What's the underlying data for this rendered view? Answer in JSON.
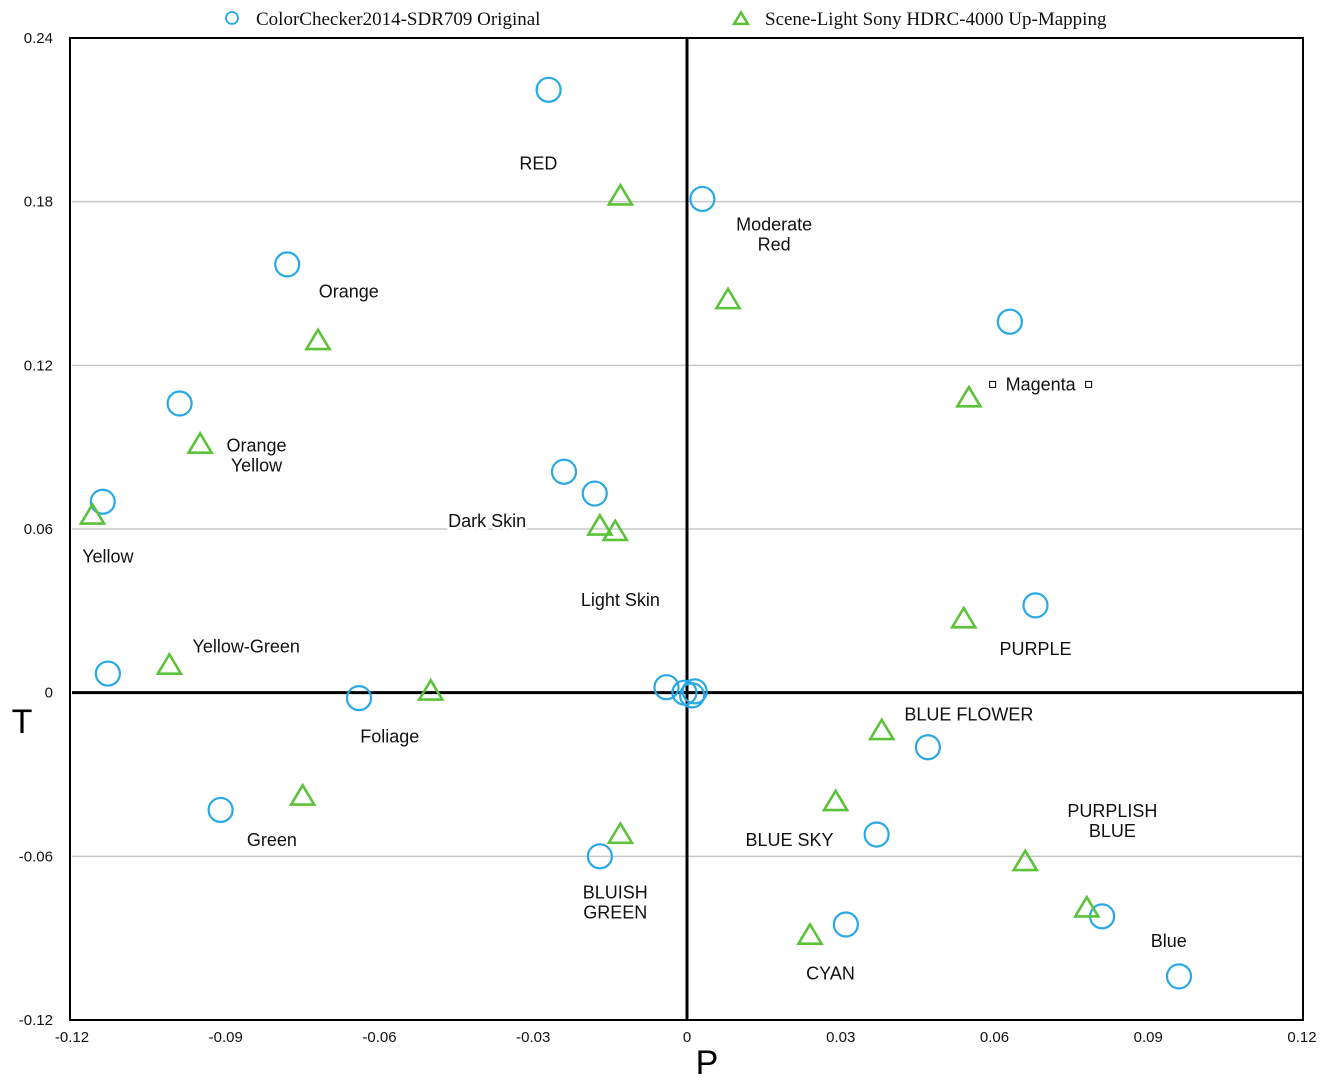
{
  "chart_data": {
    "type": "scatter",
    "title": "",
    "xlabel": "P",
    "ylabel": "T",
    "xlim": [
      -0.12,
      0.12
    ],
    "ylim": [
      -0.12,
      0.24
    ],
    "x_ticks": [
      "-0.12",
      "-0.09",
      "-0.06",
      "-0.03",
      "0",
      "0.03",
      "0.06",
      "0.09",
      "0.12"
    ],
    "y_ticks": [
      "0.24",
      "0.18",
      "0.12",
      "0.06",
      "0",
      "-0.06",
      "-0.12"
    ],
    "grid": "horizontal",
    "legend_position": "top",
    "series": [
      {
        "name": "ColorChecker2014-SDR709 Original",
        "marker": "circle",
        "color": "#29a8e8",
        "points": [
          {
            "x": -0.027,
            "y": 0.221
          },
          {
            "x": 0.003,
            "y": 0.181
          },
          {
            "x": -0.078,
            "y": 0.157
          },
          {
            "x": 0.063,
            "y": 0.136
          },
          {
            "x": -0.099,
            "y": 0.106
          },
          {
            "x": -0.024,
            "y": 0.081
          },
          {
            "x": -0.018,
            "y": 0.073
          },
          {
            "x": -0.114,
            "y": 0.07
          },
          {
            "x": 0.068,
            "y": 0.032
          },
          {
            "x": -0.113,
            "y": 0.007
          },
          {
            "x": -0.064,
            "y": -0.002
          },
          {
            "x": -0.004,
            "y": 0.002
          },
          {
            "x": -0.0005,
            "y": 0.0
          },
          {
            "x": 0.001,
            "y": -0.001
          },
          {
            "x": 0.0015,
            "y": 0.0005
          },
          {
            "x": 0.047,
            "y": -0.02
          },
          {
            "x": -0.091,
            "y": -0.043
          },
          {
            "x": 0.037,
            "y": -0.052
          },
          {
            "x": -0.017,
            "y": -0.06
          },
          {
            "x": 0.031,
            "y": -0.085
          },
          {
            "x": 0.081,
            "y": -0.082
          },
          {
            "x": 0.096,
            "y": -0.104
          }
        ]
      },
      {
        "name": "Scene-Light Sony HDRC-4000 Up-Mapping",
        "marker": "triangle",
        "color": "#5cc23a",
        "points": [
          {
            "x": -0.013,
            "y": 0.182
          },
          {
            "x": 0.008,
            "y": 0.144
          },
          {
            "x": -0.072,
            "y": 0.129
          },
          {
            "x": 0.055,
            "y": 0.108
          },
          {
            "x": -0.095,
            "y": 0.091
          },
          {
            "x": -0.017,
            "y": 0.061
          },
          {
            "x": -0.014,
            "y": 0.059
          },
          {
            "x": -0.116,
            "y": 0.065
          },
          {
            "x": 0.054,
            "y": 0.027
          },
          {
            "x": -0.101,
            "y": 0.01
          },
          {
            "x": -0.05,
            "y": 0.0005
          },
          {
            "x": 0.038,
            "y": -0.014
          },
          {
            "x": -0.075,
            "y": -0.038
          },
          {
            "x": 0.029,
            "y": -0.04
          },
          {
            "x": -0.013,
            "y": -0.052
          },
          {
            "x": 0.066,
            "y": -0.062
          },
          {
            "x": 0.078,
            "y": -0.079
          },
          {
            "x": 0.024,
            "y": -0.089
          }
        ]
      }
    ],
    "annotations": [
      {
        "text": [
          "RED"
        ],
        "x": -0.029,
        "y": 0.194
      },
      {
        "text": [
          "Moderate",
          "Red"
        ],
        "x": 0.017,
        "y": 0.168
      },
      {
        "text": [
          "Orange"
        ],
        "x": -0.066,
        "y": 0.147
      },
      {
        "text": [
          "Magenta"
        ],
        "x": 0.069,
        "y": 0.113
      },
      {
        "text": [
          "Orange",
          "Yellow"
        ],
        "x": -0.084,
        "y": 0.087
      },
      {
        "text": [
          "Dark Skin"
        ],
        "x": -0.039,
        "y": 0.063
      },
      {
        "text": [
          "Yellow"
        ],
        "x": -0.113,
        "y": 0.05
      },
      {
        "text": [
          "Light Skin"
        ],
        "x": -0.013,
        "y": 0.034
      },
      {
        "text": [
          "PURPLE"
        ],
        "x": 0.068,
        "y": 0.016
      },
      {
        "text": [
          "Yellow-Green"
        ],
        "x": -0.086,
        "y": 0.017
      },
      {
        "text": [
          "BLUE FLOWER"
        ],
        "x": 0.055,
        "y": -0.008
      },
      {
        "text": [
          "Foliage"
        ],
        "x": -0.058,
        "y": -0.016
      },
      {
        "text": [
          "Green"
        ],
        "x": -0.081,
        "y": -0.054
      },
      {
        "text": [
          "BLUE SKY"
        ],
        "x": 0.02,
        "y": -0.054
      },
      {
        "text": [
          "PURPLISH",
          "BLUE"
        ],
        "x": 0.083,
        "y": -0.047
      },
      {
        "text": [
          "BLUISH",
          "GREEN"
        ],
        "x": -0.014,
        "y": -0.077
      },
      {
        "text": [
          "Blue"
        ],
        "x": 0.094,
        "y": -0.091
      },
      {
        "text": [
          "CYAN"
        ],
        "x": 0.028,
        "y": -0.103
      }
    ]
  }
}
